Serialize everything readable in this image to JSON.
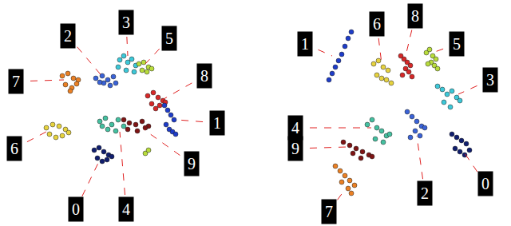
{
  "chart_data": [
    {
      "type": "scatter",
      "xlim": [
        0,
        320
      ],
      "ylim": [
        283,
        0
      ],
      "tick_labels": false,
      "series": [
        {
          "color": "#3cc8d8",
          "x": [
            150,
            155,
            160,
            165,
            170,
            158,
            148,
            168
          ],
          "y": [
            75,
            70,
            78,
            74,
            82,
            88,
            84,
            90
          ]
        },
        {
          "color": "#3a62d6",
          "x": [
            120,
            128,
            135,
            142,
            130,
            138,
            125,
            145
          ],
          "y": [
            98,
            95,
            100,
            96,
            104,
            107,
            103,
            104
          ]
        },
        {
          "color": "#b8dc3c",
          "x": [
            174,
            180,
            186,
            178,
            184,
            190,
            182,
            186
          ],
          "y": [
            80,
            78,
            84,
            88,
            90,
            86,
            192,
            188
          ]
        },
        {
          "color": "#d62828",
          "x": [
            185,
            192,
            198,
            204,
            190,
            200,
            207,
            195
          ],
          "y": [
            120,
            116,
            122,
            126,
            130,
            132,
            128,
            136
          ]
        },
        {
          "color": "#ea8024",
          "x": [
            78,
            85,
            92,
            98,
            82,
            90,
            96,
            88
          ],
          "y": [
            95,
            92,
            98,
            100,
            106,
            110,
            105,
            114
          ]
        },
        {
          "color": "#e6d23e",
          "x": [
            58,
            66,
            74,
            82,
            62,
            70,
            78,
            86
          ],
          "y": [
            160,
            156,
            158,
            162,
            168,
            172,
            170,
            166
          ]
        },
        {
          "color": "#1e3cc8",
          "x": [
            206,
            210,
            214,
            218,
            208,
            212,
            216,
            220
          ],
          "y": [
            132,
            138,
            144,
            150,
            156,
            162,
            165,
            168
          ]
        },
        {
          "color": "#101e6e",
          "x": [
            118,
            124,
            130,
            136,
            122,
            128,
            134,
            140
          ],
          "y": [
            188,
            185,
            190,
            194,
            198,
            202,
            200,
            196
          ]
        },
        {
          "color": "#44c0a0",
          "x": [
            125,
            132,
            140,
            148,
            155,
            135,
            145,
            128
          ],
          "y": [
            152,
            148,
            156,
            150,
            158,
            162,
            164,
            158
          ]
        },
        {
          "color": "#7e1414",
          "x": [
            155,
            162,
            170,
            178,
            186,
            160,
            172,
            182
          ],
          "y": [
            150,
            154,
            156,
            152,
            158,
            162,
            164,
            160
          ]
        }
      ],
      "annotations": [
        {
          "text": "3",
          "x": 158,
          "y": 28,
          "to": [
            160,
            70
          ]
        },
        {
          "text": "2",
          "x": 85,
          "y": 45,
          "to": [
            130,
            98
          ]
        },
        {
          "text": "5",
          "x": 212,
          "y": 48,
          "to": [
            182,
            80
          ]
        },
        {
          "text": "8",
          "x": 256,
          "y": 95,
          "to": [
            205,
            124
          ]
        },
        {
          "text": "7",
          "x": 20,
          "y": 102,
          "to": [
            80,
            100
          ]
        },
        {
          "text": "6",
          "x": 18,
          "y": 186,
          "to": [
            58,
            165
          ]
        },
        {
          "text": "1",
          "x": 272,
          "y": 154,
          "to": [
            222,
            150
          ]
        },
        {
          "text": "0",
          "x": 95,
          "y": 262,
          "to": [
            125,
            200
          ]
        },
        {
          "text": "4",
          "x": 158,
          "y": 262,
          "to": [
            150,
            165
          ]
        },
        {
          "text": "9",
          "x": 240,
          "y": 205,
          "to": [
            180,
            162
          ]
        }
      ]
    },
    {
      "type": "scatter",
      "xlim": [
        0,
        320
      ],
      "ylim": [
        283,
        0
      ],
      "tick_labels": false,
      "series": [
        {
          "color": "#1e3cc8",
          "x": [
            92,
            96,
            100,
            104,
            108,
            112,
            116,
            120
          ],
          "y": [
            100,
            92,
            84,
            76,
            68,
            58,
            48,
            40
          ]
        },
        {
          "color": "#e6d23e",
          "x": [
            148,
            154,
            160,
            166,
            152,
            158,
            164,
            170
          ],
          "y": [
            80,
            76,
            84,
            88,
            94,
            98,
            100,
            104
          ]
        },
        {
          "color": "#d62828",
          "x": [
            182,
            186,
            190,
            194,
            188,
            192,
            184,
            196
          ],
          "y": [
            70,
            74,
            78,
            82,
            86,
            90,
            94,
            96
          ]
        },
        {
          "color": "#b8dc3c",
          "x": [
            214,
            218,
            222,
            226,
            220,
            224,
            216,
            228
          ],
          "y": [
            66,
            62,
            70,
            74,
            78,
            82,
            80,
            86
          ]
        },
        {
          "color": "#3cc8d8",
          "x": [
            228,
            234,
            240,
            246,
            252,
            236,
            244,
            256
          ],
          "y": [
            108,
            112,
            118,
            114,
            122,
            128,
            134,
            126
          ]
        },
        {
          "color": "#44c0a0",
          "x": [
            140,
            146,
            152,
            158,
            164,
            150,
            160,
            168
          ],
          "y": [
            156,
            150,
            160,
            164,
            170,
            174,
            178,
            168
          ]
        },
        {
          "color": "#7e1414",
          "x": [
            110,
            118,
            126,
            134,
            142,
            122,
            132,
            146
          ],
          "y": [
            178,
            182,
            186,
            190,
            194,
            192,
            198,
            196
          ]
        },
        {
          "color": "#ea8024",
          "x": [
            100,
            106,
            112,
            118,
            124,
            108,
            116,
            120
          ],
          "y": [
            208,
            214,
            220,
            226,
            232,
            228,
            236,
            242
          ]
        },
        {
          "color": "#3a62d6",
          "x": [
            190,
            196,
            202,
            208,
            200,
            206,
            194,
            212
          ],
          "y": [
            140,
            146,
            152,
            158,
            164,
            170,
            172,
            160
          ]
        },
        {
          "color": "#101e6e",
          "x": [
            246,
            252,
            258,
            264,
            250,
            256,
            262,
            268
          ],
          "y": [
            168,
            172,
            176,
            180,
            186,
            190,
            194,
            188
          ]
        }
      ],
      "annotations": [
        {
          "text": "1",
          "x": 62,
          "y": 55,
          "to": [
            96,
            70
          ]
        },
        {
          "text": "6",
          "x": 152,
          "y": 30,
          "to": [
            158,
            80
          ]
        },
        {
          "text": "8",
          "x": 200,
          "y": 20,
          "to": [
            188,
            70
          ]
        },
        {
          "text": "5",
          "x": 252,
          "y": 55,
          "to": [
            222,
            66
          ]
        },
        {
          "text": "3",
          "x": 294,
          "y": 100,
          "to": [
            254,
            118
          ]
        },
        {
          "text": "4",
          "x": 50,
          "y": 160,
          "to": [
            145,
            160
          ]
        },
        {
          "text": "9",
          "x": 50,
          "y": 186,
          "to": [
            115,
            184
          ]
        },
        {
          "text": "7",
          "x": 92,
          "y": 265,
          "to": [
            110,
            240
          ]
        },
        {
          "text": "2",
          "x": 212,
          "y": 242,
          "to": [
            202,
            170
          ]
        },
        {
          "text": "0",
          "x": 288,
          "y": 230,
          "to": [
            262,
            192
          ]
        }
      ]
    }
  ]
}
